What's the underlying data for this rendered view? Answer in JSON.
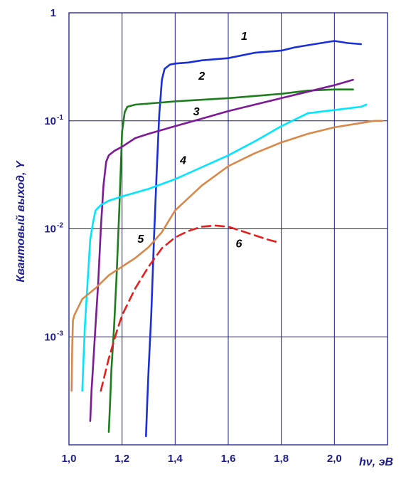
{
  "chart_data": {
    "type": "line",
    "title": "",
    "xlabel": "hν, эВ",
    "ylabel": "Квантовый выход, Y",
    "xlim": [
      1.0,
      2.2
    ],
    "ylim_log10": [
      -4.0,
      0.0
    ],
    "y_scale": "log",
    "grid": true,
    "x_tick_labels": [
      "1,0",
      "1,2",
      "1,4",
      "1,6",
      "1,8",
      "2,0"
    ],
    "x_tick_values": [
      1.0,
      1.2,
      1.4,
      1.6,
      1.8,
      2.0
    ],
    "y_tick_labels": [
      {
        "value": 0,
        "base": "1",
        "exp": ""
      },
      {
        "value": -1,
        "base": "10",
        "exp": "-1"
      },
      {
        "value": -2,
        "base": "10",
        "exp": "-2"
      },
      {
        "value": -3,
        "base": "10",
        "exp": "-3"
      }
    ],
    "series": [
      {
        "name": "1",
        "color": "#1a2fd6",
        "dashed": false,
        "x": [
          1.29,
          1.295,
          1.3,
          1.31,
          1.32,
          1.33,
          1.34,
          1.35,
          1.36,
          1.38,
          1.4,
          1.45,
          1.5,
          1.6,
          1.7,
          1.8,
          1.85,
          1.9,
          1.95,
          2.0,
          2.05,
          2.1
        ],
        "y": [
          -3.92,
          -3.6,
          -3.3,
          -2.8,
          -2.1,
          -1.5,
          -0.95,
          -0.62,
          -0.52,
          -0.48,
          -0.47,
          -0.46,
          -0.44,
          -0.42,
          -0.37,
          -0.35,
          -0.32,
          -0.3,
          -0.28,
          -0.26,
          -0.28,
          -0.29
        ]
      },
      {
        "name": "2",
        "color": "#1e7d1e",
        "dashed": false,
        "x": [
          1.15,
          1.155,
          1.16,
          1.17,
          1.18,
          1.19,
          1.2,
          1.21,
          1.22,
          1.25,
          1.3,
          1.4,
          1.6,
          1.8,
          1.9,
          2.0,
          2.07
        ],
        "y": [
          -3.88,
          -3.6,
          -3.3,
          -2.9,
          -2.4,
          -1.8,
          -1.1,
          -0.92,
          -0.87,
          -0.85,
          -0.84,
          -0.82,
          -0.79,
          -0.75,
          -0.72,
          -0.71,
          -0.71
        ]
      },
      {
        "name": "3",
        "color": "#7d1a96",
        "dashed": false,
        "x": [
          1.08,
          1.085,
          1.09,
          1.1,
          1.11,
          1.12,
          1.13,
          1.14,
          1.15,
          1.17,
          1.2,
          1.25,
          1.3,
          1.4,
          1.5,
          1.6,
          1.7,
          1.8,
          1.9,
          2.0,
          2.07
        ],
        "y": [
          -3.78,
          -3.5,
          -3.3,
          -2.9,
          -2.5,
          -2.0,
          -1.6,
          -1.38,
          -1.32,
          -1.28,
          -1.24,
          -1.16,
          -1.12,
          -1.05,
          -0.98,
          -0.91,
          -0.85,
          -0.79,
          -0.73,
          -0.67,
          -0.62
        ]
      },
      {
        "name": "4",
        "color": "#00e6ff",
        "dashed": false,
        "x": [
          1.05,
          1.055,
          1.06,
          1.07,
          1.08,
          1.09,
          1.1,
          1.12,
          1.15,
          1.2,
          1.3,
          1.4,
          1.5,
          1.6,
          1.7,
          1.8,
          1.9,
          2.0,
          2.1,
          2.12
        ],
        "y": [
          -3.5,
          -3.2,
          -2.9,
          -2.5,
          -2.1,
          -1.95,
          -1.83,
          -1.78,
          -1.74,
          -1.7,
          -1.63,
          -1.54,
          -1.43,
          -1.32,
          -1.19,
          -1.05,
          -0.93,
          -0.9,
          -0.87,
          -0.85
        ]
      },
      {
        "name": "5",
        "color": "#d9884a",
        "dashed": false,
        "x": [
          1.01,
          1.012,
          1.015,
          1.02,
          1.05,
          1.1,
          1.15,
          1.2,
          1.25,
          1.3,
          1.35,
          1.4,
          1.5,
          1.6,
          1.7,
          1.8,
          1.9,
          2.0,
          2.1,
          2.15,
          2.18
        ],
        "y": [
          -3.5,
          -3.1,
          -2.85,
          -2.8,
          -2.65,
          -2.55,
          -2.43,
          -2.35,
          -2.27,
          -2.17,
          -2.03,
          -1.83,
          -1.6,
          -1.42,
          -1.3,
          -1.2,
          -1.12,
          -1.06,
          -1.02,
          -1.0,
          -1.0
        ]
      },
      {
        "name": "6",
        "color": "#e61e1e",
        "dashed": true,
        "x": [
          1.12,
          1.15,
          1.18,
          1.2,
          1.25,
          1.3,
          1.35,
          1.4,
          1.45,
          1.5,
          1.55,
          1.6,
          1.65,
          1.7,
          1.75,
          1.78
        ],
        "y": [
          -3.5,
          -3.2,
          -2.95,
          -2.8,
          -2.55,
          -2.35,
          -2.18,
          -2.08,
          -2.02,
          -1.98,
          -1.97,
          -1.98,
          -2.02,
          -2.06,
          -2.1,
          -2.12
        ]
      }
    ],
    "curve_labels": [
      {
        "text": "1",
        "x": 1.66,
        "y": -0.25
      },
      {
        "text": "2",
        "x": 1.5,
        "y": -0.62
      },
      {
        "text": "3",
        "x": 1.48,
        "y": -0.95
      },
      {
        "text": "4",
        "x": 1.43,
        "y": -1.4
      },
      {
        "text": "5",
        "x": 1.27,
        "y": -2.13
      },
      {
        "text": "6",
        "x": 1.64,
        "y": -2.17
      }
    ]
  }
}
